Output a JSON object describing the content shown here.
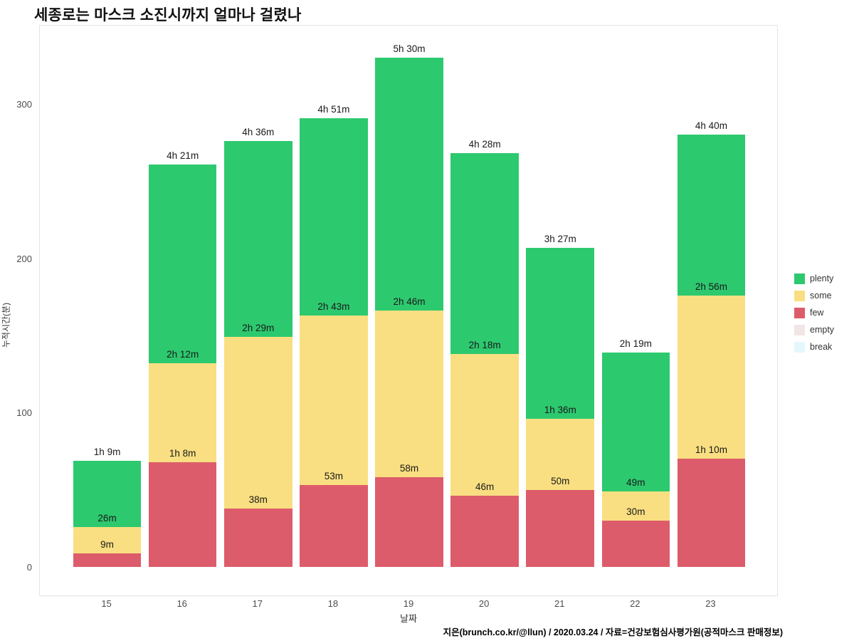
{
  "title": "세종로는 마스크 소진시까지 얼마나 걸렸나",
  "caption": "지은(brunch.co.kr/@llun) / 2020.03.24 / 자료=건강보험심사평가원(공적마스크 판매정보)",
  "chart_data": {
    "type": "bar",
    "stacked": true,
    "title": "세종로는 마스크 소진시까지 얼마나 걸렸나",
    "xlabel": "날짜",
    "ylabel": "누적시간(분)",
    "categories": [
      "15",
      "16",
      "17",
      "18",
      "19",
      "20",
      "21",
      "22",
      "23"
    ],
    "yticks": [
      0,
      100,
      200,
      300
    ],
    "ylim": [
      0,
      352
    ],
    "grid": false,
    "legend_position": "right",
    "series": [
      {
        "name": "few",
        "color": "#DD5C6B",
        "values": [
          9,
          68,
          38,
          53,
          58,
          46,
          50,
          30,
          70
        ]
      },
      {
        "name": "some",
        "color": "#F9DF81",
        "values": [
          17,
          64,
          111,
          110,
          108,
          92,
          46,
          19,
          106
        ]
      },
      {
        "name": "plenty",
        "color": "#2DC96F",
        "values": [
          43,
          129,
          127,
          128,
          164,
          130,
          111,
          90,
          104
        ]
      }
    ],
    "totals_minutes": [
      69,
      261,
      276,
      291,
      330,
      268,
      207,
      139,
      280
    ],
    "segment_labels": {
      "few": [
        "9m",
        "1h 8m",
        "38m",
        "53m",
        "58m",
        "46m",
        "50m",
        "30m",
        "1h 10m"
      ],
      "some": [
        "26m",
        "2h 12m",
        "2h 29m",
        "2h 43m",
        "2h 46m",
        "2h 18m",
        "1h 36m",
        "49m",
        "2h 56m"
      ],
      "total": [
        "1h 9m",
        "4h 21m",
        "4h 36m",
        "4h 51m",
        "5h 30m",
        "4h 28m",
        "3h 27m",
        "2h 19m",
        "4h 40m"
      ]
    },
    "legend": [
      {
        "label": "plenty",
        "color": "#2DC96F"
      },
      {
        "label": "some",
        "color": "#F9DF81"
      },
      {
        "label": "few",
        "color": "#DD5C6B"
      },
      {
        "label": "empty",
        "color": "#F0E6E6"
      },
      {
        "label": "break",
        "color": "#E4F8FB"
      }
    ]
  }
}
